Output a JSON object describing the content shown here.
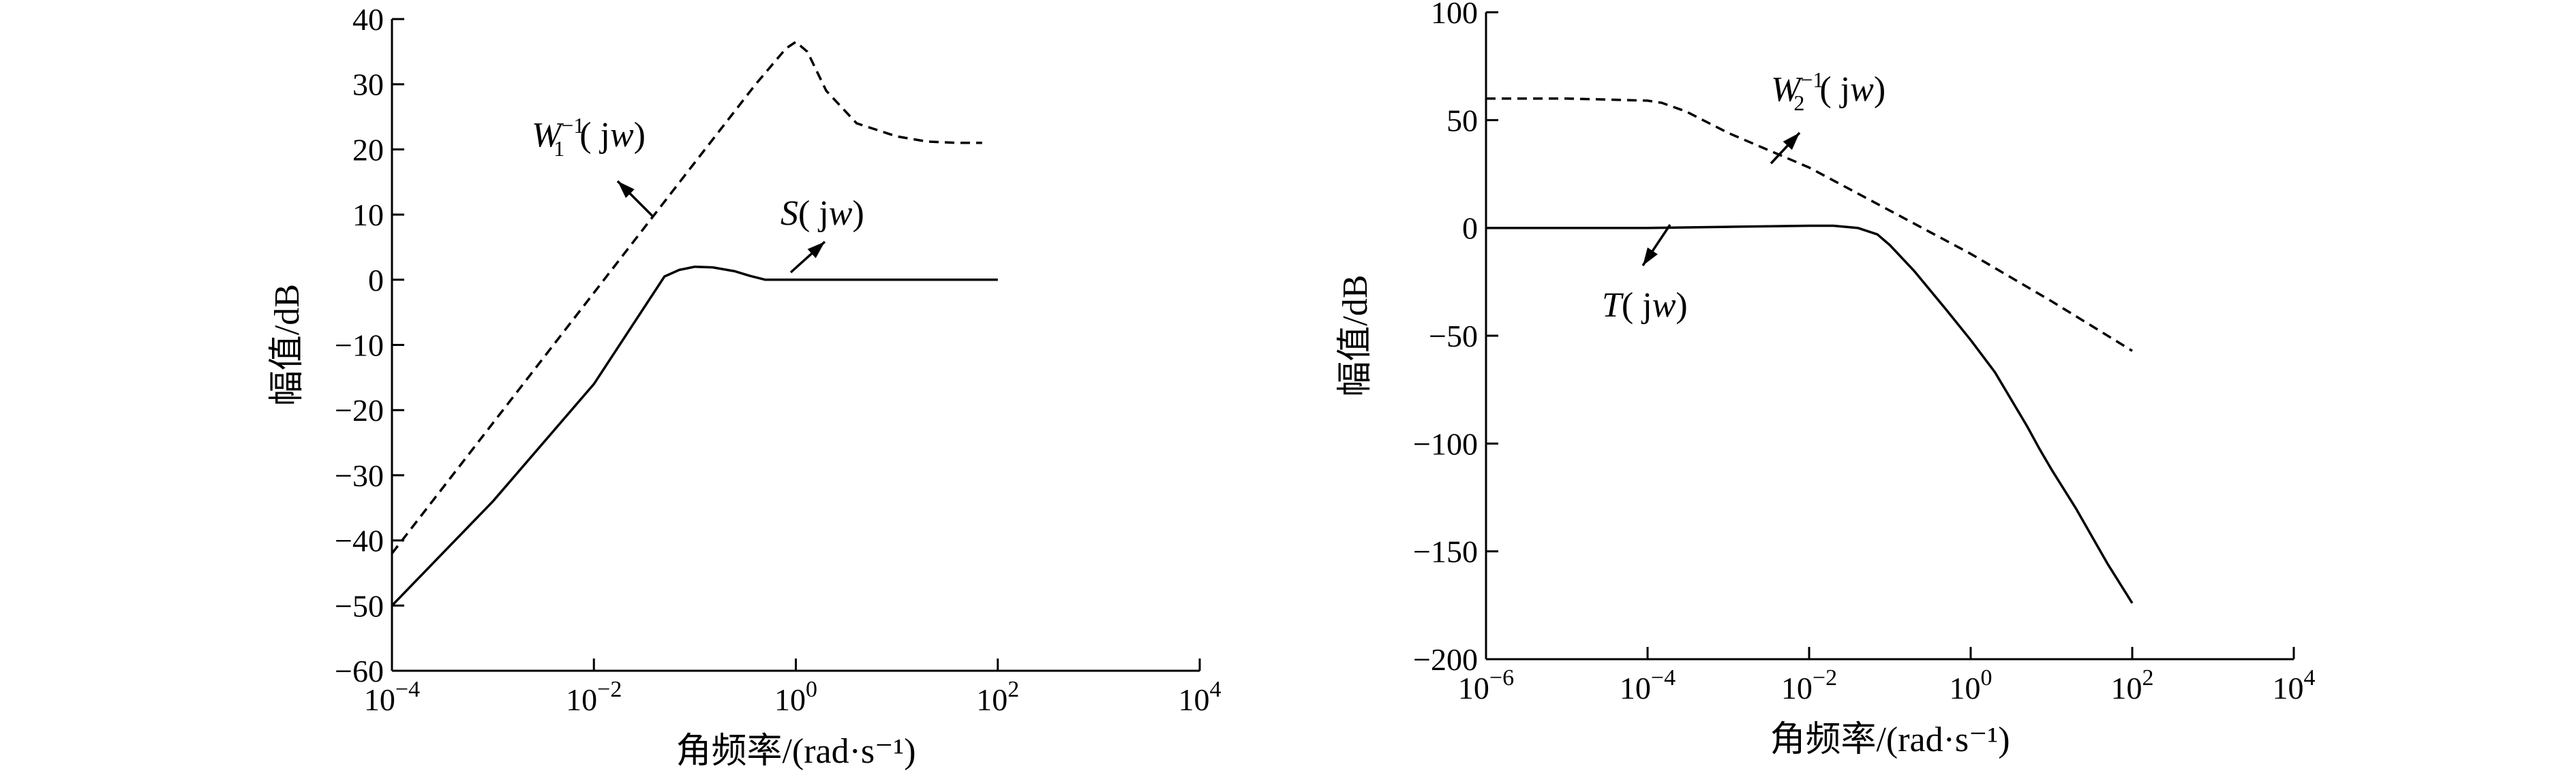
{
  "chart_data": [
    {
      "type": "line",
      "xscale": "log",
      "xlim": [
        0.0001,
        10000
      ],
      "ylim": [
        -60,
        40
      ],
      "grid": false,
      "xlabel": "角频率/(rad·s⁻¹)",
      "ylabel": "幅值/dB",
      "x_tick_labels": [
        {
          "base": "10",
          "exp": "−4"
        },
        {
          "base": "10",
          "exp": "−2"
        },
        {
          "base": "10",
          "exp": "0"
        },
        {
          "base": "10",
          "exp": "2"
        },
        {
          "base": "10",
          "exp": "4"
        }
      ],
      "y_tick_labels": [
        "40",
        "30",
        "20",
        "10",
        "0",
        "−10",
        "−20",
        "−30",
        "−40",
        "−50",
        "−60"
      ],
      "annotations": [
        {
          "symbol": "W",
          "sub": "1",
          "sup": "−1",
          "arg": "( jw)"
        },
        {
          "symbol": "S",
          "sub": "",
          "sup": "",
          "arg": "( jw)"
        }
      ],
      "series": [
        {
          "style": "dashed",
          "x": [
            0.0001,
            0.001,
            0.01,
            0.1,
            0.4,
            0.8,
            1.0,
            1.3,
            2,
            4,
            10,
            20,
            40,
            70
          ],
          "y": [
            -42,
            -22,
            -2,
            18,
            30,
            35.5,
            36.5,
            35,
            29,
            24,
            22,
            21.2,
            21,
            21
          ]
        },
        {
          "style": "solid",
          "x": [
            0.0001,
            0.001,
            0.01,
            0.05,
            0.07,
            0.1,
            0.15,
            0.25,
            0.35,
            0.5,
            0.7,
            1,
            10,
            100
          ],
          "y": [
            -50,
            -34,
            -16,
            0.5,
            1.5,
            2,
            1.9,
            1.3,
            0.6,
            0,
            0,
            0,
            0,
            0
          ]
        }
      ]
    },
    {
      "type": "line",
      "xscale": "log",
      "xlim": [
        1e-06,
        10000
      ],
      "ylim": [
        -200,
        100
      ],
      "grid": false,
      "xlabel": "角频率/(rad·s⁻¹)",
      "ylabel": "幅值/dB",
      "x_tick_labels": [
        {
          "base": "10",
          "exp": "−6"
        },
        {
          "base": "10",
          "exp": "−4"
        },
        {
          "base": "10",
          "exp": "−2"
        },
        {
          "base": "10",
          "exp": "0"
        },
        {
          "base": "10",
          "exp": "2"
        },
        {
          "base": "10",
          "exp": "4"
        }
      ],
      "y_tick_labels": [
        "100",
        "50",
        "0",
        "−50",
        "−100",
        "−150",
        "−200"
      ],
      "annotations": [
        {
          "symbol": "W",
          "sub": "2",
          "sup": "−1",
          "arg": "( jw)"
        },
        {
          "symbol": "T",
          "sub": "",
          "sup": "",
          "arg": "( jw)"
        }
      ],
      "series": [
        {
          "style": "dashed",
          "x": [
            1e-06,
            1e-05,
            0.0001,
            0.00015,
            0.0003,
            0.001,
            0.01,
            0.1,
            1,
            10,
            100
          ],
          "y": [
            60,
            60,
            59,
            58,
            54,
            44,
            28,
            8,
            -12,
            -34,
            -57
          ]
        },
        {
          "style": "solid",
          "x": [
            1e-06,
            0.0001,
            0.001,
            0.01,
            0.02,
            0.04,
            0.07,
            0.1,
            0.2,
            0.5,
            1,
            2,
            5,
            7,
            10,
            20,
            50,
            100
          ],
          "y": [
            0,
            0,
            0.5,
            1,
            1,
            0,
            -3,
            -8,
            -20,
            -38,
            -52,
            -67,
            -92,
            -102,
            -112,
            -130,
            -156,
            -174
          ]
        }
      ]
    }
  ]
}
